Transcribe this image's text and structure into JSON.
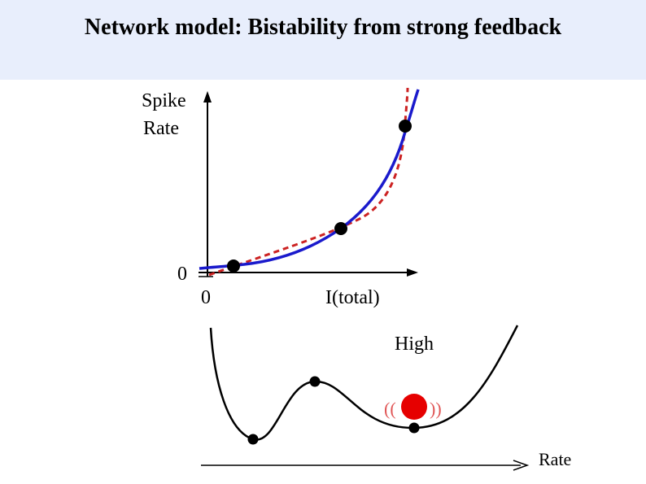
{
  "slide": {
    "title": "Network model: Bistability from strong feedback"
  },
  "rate_plot": {
    "y_label_line1": "Spike",
    "y_label_line2": "Rate",
    "y_zero": "0",
    "x_zero": "0",
    "x_label": "I(total)",
    "curve_colors": {
      "gain_curve": "#1a1acc",
      "feedback_line": "#cc2222"
    },
    "fixed_points": 3
  },
  "energy_plot": {
    "high_label": "High",
    "x_label": "Rate",
    "vibration_left": "((",
    "vibration_right": "))",
    "ball_color": "#e60000"
  }
}
